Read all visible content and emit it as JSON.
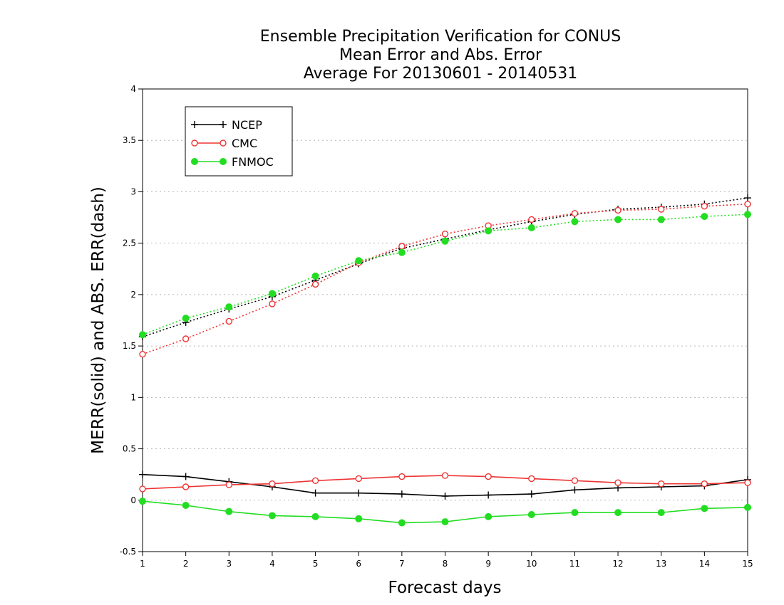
{
  "chart_data": {
    "type": "line",
    "title": [
      "Ensemble Precipitation Verification for CONUS",
      "Mean Error and Abs. Error",
      "Average For 20130601 - 20140531"
    ],
    "xlabel": "Forecast days",
    "ylabel": "MERR(solid) and ABS. ERR(dash)",
    "x": [
      1,
      2,
      3,
      4,
      5,
      6,
      7,
      8,
      9,
      10,
      11,
      12,
      13,
      14,
      15
    ],
    "xlim": [
      1,
      15
    ],
    "ylim": [
      -0.5,
      4
    ],
    "yticks": [
      -0.5,
      0,
      0.5,
      1,
      1.5,
      2,
      2.5,
      3,
      3.5,
      4
    ],
    "ytick_labels": [
      "-0.5",
      "0",
      "0.5",
      "1",
      "1.5",
      "2",
      "2.5",
      "3",
      "3.5",
      "4"
    ],
    "grid": "horizontal dotted",
    "legend_position": "top-left",
    "series": [
      {
        "name": "NCEP",
        "color": "#000000",
        "marker": "plus",
        "merr": [
          0.25,
          0.23,
          0.18,
          0.13,
          0.07,
          0.07,
          0.06,
          0.04,
          0.05,
          0.06,
          0.1,
          0.12,
          0.13,
          0.14,
          0.2
        ],
        "abserr": [
          1.59,
          1.73,
          1.86,
          1.98,
          2.14,
          2.3,
          2.45,
          2.54,
          2.63,
          2.71,
          2.78,
          2.83,
          2.85,
          2.88,
          2.94
        ]
      },
      {
        "name": "CMC",
        "color": "#ee3333",
        "marker": "open-circle",
        "merr": [
          0.11,
          0.13,
          0.15,
          0.16,
          0.19,
          0.21,
          0.23,
          0.24,
          0.23,
          0.21,
          0.19,
          0.17,
          0.16,
          0.16,
          0.17
        ],
        "abserr": [
          1.42,
          1.57,
          1.74,
          1.91,
          2.1,
          2.31,
          2.47,
          2.59,
          2.67,
          2.73,
          2.79,
          2.82,
          2.83,
          2.86,
          2.88
        ]
      },
      {
        "name": "FNMOC",
        "color": "#22dd22",
        "marker": "filled-circle",
        "merr": [
          -0.01,
          -0.05,
          -0.11,
          -0.15,
          -0.16,
          -0.18,
          -0.22,
          -0.21,
          -0.16,
          -0.14,
          -0.12,
          -0.12,
          -0.12,
          -0.08,
          -0.07
        ],
        "abserr": [
          1.61,
          1.77,
          1.88,
          2.01,
          2.18,
          2.33,
          2.41,
          2.52,
          2.62,
          2.65,
          2.71,
          2.73,
          2.73,
          2.76,
          2.78
        ]
      }
    ]
  }
}
